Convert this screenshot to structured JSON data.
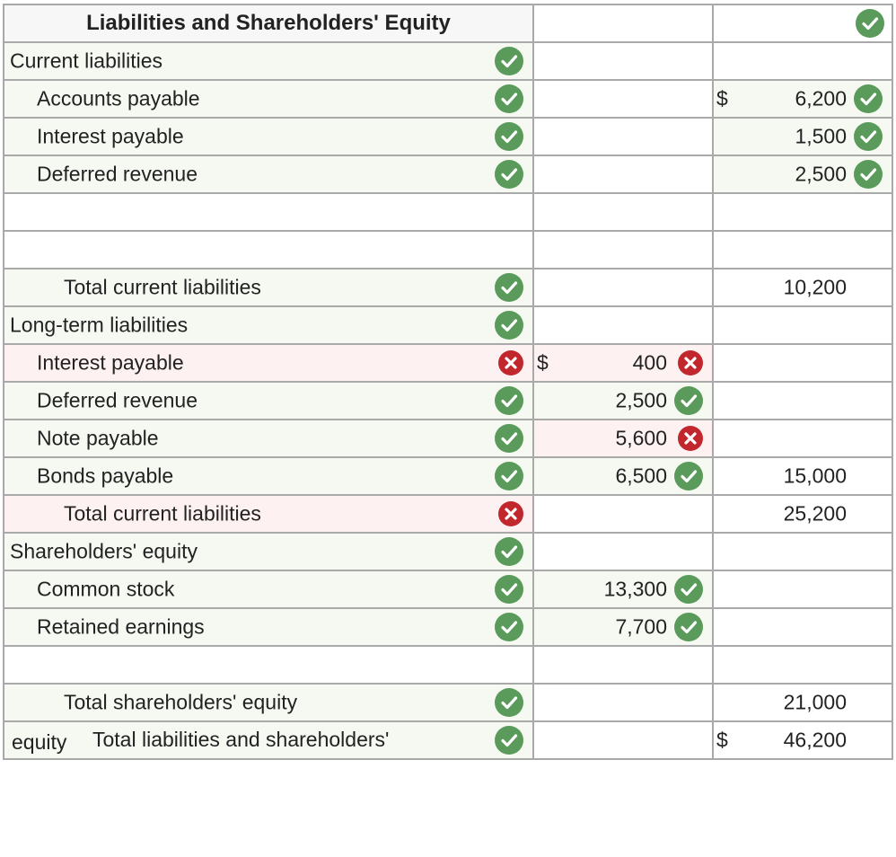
{
  "header": {
    "title": "Liabilities and Shareholders' Equity",
    "status": "correct"
  },
  "rows": [
    {
      "label": "Current liabilities",
      "indent": 0,
      "status": "correct",
      "mid": null,
      "right": null
    },
    {
      "label": "Accounts payable",
      "indent": 1,
      "status": "correct",
      "mid": null,
      "right": {
        "currency": "$",
        "value": "6,200",
        "status": "correct"
      }
    },
    {
      "label": "Interest payable",
      "indent": 1,
      "status": "correct",
      "mid": null,
      "right": {
        "value": "1,500",
        "status": "correct"
      }
    },
    {
      "label": "Deferred revenue",
      "indent": 1,
      "status": "correct",
      "mid": null,
      "right": {
        "value": "2,500",
        "status": "correct"
      }
    },
    {
      "label": "",
      "indent": 0,
      "status": "none",
      "mid": null,
      "right": null,
      "blank": true
    },
    {
      "label": "",
      "indent": 0,
      "status": "none",
      "mid": null,
      "right": null,
      "blank": true
    },
    {
      "label": "Total current liabilities",
      "indent": 2,
      "status": "correct",
      "mid": null,
      "right": {
        "value": "10,200"
      },
      "sum": true
    },
    {
      "label": "Long-term liabilities",
      "indent": 0,
      "status": "correct",
      "mid": null,
      "right": null
    },
    {
      "label": "Interest payable",
      "indent": 1,
      "status": "incorrect",
      "mid": {
        "currency": "$",
        "value": "400",
        "status": "incorrect"
      },
      "right": null
    },
    {
      "label": "Deferred revenue",
      "indent": 1,
      "status": "correct",
      "mid": {
        "value": "2,500",
        "status": "correct"
      },
      "right": null
    },
    {
      "label": "Note payable",
      "indent": 1,
      "status": "correct",
      "mid": {
        "value": "5,600",
        "status": "incorrect"
      },
      "right": null
    },
    {
      "label": "Bonds payable",
      "indent": 1,
      "status": "correct",
      "mid": {
        "value": "6,500",
        "status": "correct"
      },
      "right": {
        "value": "15,000"
      }
    },
    {
      "label": "Total current liabilities",
      "indent": 2,
      "status": "incorrect",
      "mid": null,
      "right": {
        "value": "25,200"
      }
    },
    {
      "label": "Shareholders' equity",
      "indent": 0,
      "status": "correct",
      "mid": null,
      "right": null
    },
    {
      "label": "Common stock",
      "indent": 1,
      "status": "correct",
      "mid": {
        "value": "13,300",
        "status": "correct"
      },
      "right": null
    },
    {
      "label": "Retained earnings",
      "indent": 1,
      "status": "correct",
      "mid": {
        "value": "7,700",
        "status": "correct"
      },
      "right": null
    },
    {
      "label": "",
      "indent": 0,
      "status": "none",
      "mid": null,
      "right": null,
      "blank": true
    },
    {
      "label": "Total shareholders' equity",
      "indent": 2,
      "status": "correct",
      "mid": null,
      "right": {
        "value": "21,000"
      },
      "sum": true
    },
    {
      "label1": "Total liabilities and shareholders'",
      "label2": "equity",
      "status": "correct",
      "mid": null,
      "right": {
        "currency": "$",
        "value": "46,200"
      },
      "final": true
    }
  ],
  "colors": {
    "correct": "#5a9a5a",
    "incorrect": "#c1272d"
  }
}
